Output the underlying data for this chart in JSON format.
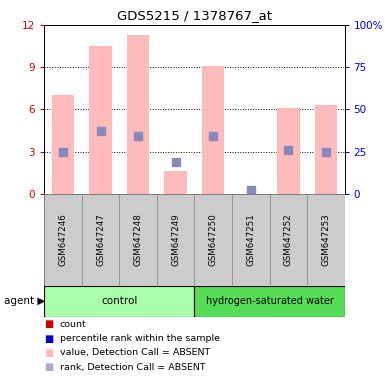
{
  "title": "GDS5215 / 1378767_at",
  "samples": [
    "GSM647246",
    "GSM647247",
    "GSM647248",
    "GSM647249",
    "GSM647250",
    "GSM647251",
    "GSM647252",
    "GSM647253"
  ],
  "group1_name": "control",
  "group1_color": "#aaffaa",
  "group1_indices": [
    0,
    1,
    2,
    3
  ],
  "group2_name": "hydrogen-saturated water",
  "group2_color": "#55dd55",
  "group2_indices": [
    4,
    5,
    6,
    7
  ],
  "pink_bars": [
    7.0,
    10.5,
    11.3,
    1.6,
    9.1,
    0.0,
    6.1,
    6.3
  ],
  "blue_dots": [
    3.0,
    4.5,
    4.1,
    2.3,
    4.1,
    0.3,
    3.1,
    3.0
  ],
  "left_ylim": [
    0,
    12
  ],
  "right_ylim": [
    0,
    12
  ],
  "left_yticks": [
    0,
    3,
    6,
    9,
    12
  ],
  "right_yticks_vals": [
    0,
    3,
    6,
    9,
    12
  ],
  "right_yticks_labels": [
    "0",
    "25",
    "50",
    "75",
    "100%"
  ],
  "left_tick_color": "#cc0000",
  "right_tick_color": "#0000cc",
  "bar_width": 0.6,
  "dot_size": 28,
  "pink_bar_color": "#ffbbbb",
  "blue_dot_color": "#8888bb",
  "legend_colors": [
    "#cc0000",
    "#0000cc",
    "#ffbbbb",
    "#aaaacc"
  ],
  "legend_labels": [
    "count",
    "percentile rank within the sample",
    "value, Detection Call = ABSENT",
    "rank, Detection Call = ABSENT"
  ],
  "agent_label": "agent"
}
